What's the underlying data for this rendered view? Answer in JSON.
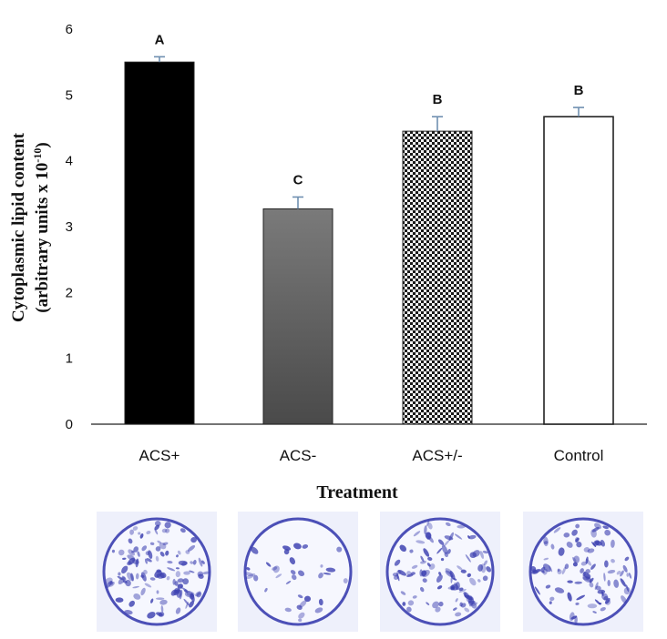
{
  "chart_data": {
    "type": "bar",
    "categories": [
      "ACS+",
      "ACS-",
      "ACS+/-",
      "Control"
    ],
    "values": [
      5.5,
      3.27,
      4.45,
      4.67
    ],
    "errors": [
      0.08,
      0.18,
      0.22,
      0.14
    ],
    "significance_letters": [
      "A",
      "C",
      "B",
      "B"
    ],
    "title": "",
    "xlabel": "Treatment",
    "ylabel_line1": "Cytoplasmic lipid content",
    "ylabel_line2_prefix": "(arbitrary units x 10",
    "ylabel_exponent": "-10",
    "ylabel_line2_suffix": ")",
    "ylim": [
      0,
      6
    ],
    "yticks": [
      0,
      1,
      2,
      3,
      4,
      5,
      6
    ],
    "grid": false,
    "legend": "none",
    "bar_styles": [
      "solid-black",
      "gray-gradient",
      "checker-pattern",
      "white-outline"
    ],
    "colors": {
      "acs_plus": "#000000",
      "acs_minus_top": "#7a7a7a",
      "acs_minus_bottom": "#4a4a4a",
      "checker_dark": "#1a1a1a",
      "checker_light": "#f2f2f2",
      "control_fill": "#ffffff",
      "error_bar": "#6f8fb0",
      "axis": "#222222",
      "stain": "#3b3fb0"
    }
  },
  "micrographs": [
    {
      "name": "acs-plus-stain",
      "density": 0.75
    },
    {
      "name": "acs-minus-stain",
      "density": 0.28
    },
    {
      "name": "acs-plus-minus-stain",
      "density": 0.62
    },
    {
      "name": "control-stain",
      "density": 0.6
    }
  ]
}
